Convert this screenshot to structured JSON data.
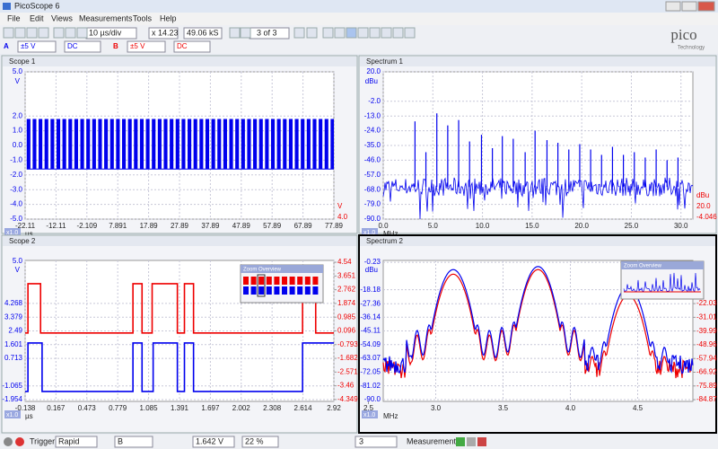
{
  "window": {
    "title": "PicoScope 6"
  },
  "menu": [
    "File",
    "Edit",
    "Views",
    "Measurements",
    "Tools",
    "Help"
  ],
  "toolbar": {
    "timebase": "10 µs/div",
    "zoom": "x 14.23",
    "samples": "49.06 kS",
    "buffer": "3 of 3"
  },
  "channels": [
    {
      "name": "A",
      "range": "±5 V",
      "coupling": "DC",
      "color": "#0000ee"
    },
    {
      "name": "B",
      "range": "±5 V",
      "coupling": "DC",
      "color": "#ee0000"
    }
  ],
  "logo": {
    "brand": "pico",
    "tagline": "Technology"
  },
  "panels": [
    {
      "title": "Scope 1",
      "type": "scope",
      "y_unit": "V",
      "x_unit": "µs",
      "scale_tag": "x1.0",
      "xlim": [
        -22.11,
        77.89
      ],
      "ylim": [
        -5,
        5
      ],
      "yticks": [
        {
          "value": 5,
          "label": "5.0"
        },
        {
          "value": 2,
          "label": "2.0"
        },
        {
          "value": 1,
          "label": "1.0"
        },
        {
          "value": 0,
          "label": "0.0"
        },
        {
          "value": -1,
          "label": "-1.0"
        },
        {
          "value": -2,
          "label": "-2.0"
        },
        {
          "value": -3,
          "label": "-3.0"
        },
        {
          "value": -4,
          "label": "-4.0"
        },
        {
          "value": -5,
          "label": "-5.0"
        }
      ],
      "xticks": [
        -22.11,
        -12.11,
        -2.109,
        7.891,
        17.89,
        27.89,
        37.89,
        47.89,
        57.89,
        67.89,
        77.89
      ],
      "right_labels": [
        "V",
        "4.0"
      ],
      "traces": [
        {
          "color": "#0000ee",
          "levels": [
            1.8,
            -1.6
          ],
          "pulse_start": -21.6,
          "pulse_period": 1.93
        }
      ]
    },
    {
      "title": "Spectrum 1",
      "type": "spectrum",
      "y_unit": "dBu",
      "x_unit": "MHz",
      "scale_tag": "x1.0",
      "xlim": [
        0,
        31.2
      ],
      "ylim": [
        -90,
        20
      ],
      "yticks": [
        {
          "value": 20,
          "label": "20.0"
        },
        {
          "value": -2,
          "label": "-2.0"
        },
        {
          "value": -13,
          "label": "-13.0"
        },
        {
          "value": -24,
          "label": "-24.0"
        },
        {
          "value": -35,
          "label": "-35.0"
        },
        {
          "value": -46,
          "label": "-46.0"
        },
        {
          "value": -57,
          "label": "-57.0"
        },
        {
          "value": -68,
          "label": "-68.0"
        },
        {
          "value": -79,
          "label": "-79.0"
        },
        {
          "value": -90,
          "label": "-90.0"
        }
      ],
      "xticks": [
        {
          "value": 0,
          "label": "0.0"
        },
        {
          "value": 5,
          "label": "5.0"
        },
        {
          "value": 10,
          "label": "10.0"
        },
        {
          "value": 15,
          "label": "15.0"
        },
        {
          "value": 20,
          "label": "20.0"
        },
        {
          "value": 25,
          "label": "25.0"
        },
        {
          "value": 30,
          "label": "30.0"
        }
      ],
      "right_labels": [
        "dBu",
        "20.0",
        "-4.046"
      ],
      "traces": [
        {
          "color": "#0000ee",
          "floor": -66,
          "peaks": [
            [
              3.2,
              -17
            ],
            [
              4.3,
              -40
            ],
            [
              5.4,
              -11
            ],
            [
              6.5,
              -20
            ],
            [
              7.6,
              -16
            ],
            [
              8.7,
              -32
            ],
            [
              9.9,
              -27
            ],
            [
              11.0,
              -37
            ],
            [
              12.0,
              -28
            ],
            [
              13.1,
              -30
            ],
            [
              14.3,
              -40
            ],
            [
              15.3,
              -24
            ],
            [
              16.5,
              -31
            ],
            [
              17.6,
              -33
            ],
            [
              18.7,
              -38
            ],
            [
              19.8,
              -34
            ],
            [
              20.9,
              -38
            ],
            [
              22.0,
              -42
            ],
            [
              23.1,
              -36
            ],
            [
              24.2,
              -42
            ],
            [
              25.3,
              -40
            ],
            [
              26.4,
              -44
            ],
            [
              27.5,
              -38
            ],
            [
              28.6,
              -46
            ],
            [
              29.7,
              -44
            ]
          ]
        }
      ]
    },
    {
      "title": "Scope 2",
      "type": "scope",
      "y_unit": "V",
      "x_unit": "µs",
      "scale_tag": "x1.0",
      "top_label": "5.0",
      "zoom_overview": "Zoom Overview",
      "xlim": [
        -0.138,
        2.92
      ],
      "ylim": [
        -2.07,
        7.05
      ],
      "y2lim": [
        -4.47,
        4.66
      ],
      "yticks": [
        4.268,
        3.379,
        2.49,
        1.601,
        0.713,
        -1.065,
        -1.954
      ],
      "y2ticks": [
        4.54,
        3.651,
        2.762,
        1.874,
        0.985,
        0.096,
        -0.793,
        -1.682,
        -2.571,
        -3.46,
        -4.349
      ],
      "xticks": [
        -0.138,
        0.167,
        0.473,
        0.779,
        1.085,
        1.391,
        1.697,
        2.002,
        2.308,
        2.614,
        2.92
      ],
      "traces": [
        {
          "color": "#ee0000",
          "axis": "y2",
          "levels": [
            3.15,
            -0.04
          ],
          "high_intervals": [
            [
              -0.11,
              0.015
            ],
            [
              0.93,
              1.02
            ],
            [
              1.12,
              1.37
            ],
            [
              1.44,
              1.53
            ],
            [
              2.61,
              2.74
            ]
          ]
        },
        {
          "color": "#0000ee",
          "levels": [
            1.71,
            -1.43
          ],
          "high_intervals": [
            [
              -0.11,
              0.03
            ],
            [
              0.93,
              1.02
            ],
            [
              1.13,
              1.37
            ],
            [
              1.44,
              1.53
            ],
            [
              2.61,
              2.92
            ]
          ]
        }
      ]
    },
    {
      "title": "Spectrum 2",
      "type": "spectrum2",
      "y_unit": "dBu",
      "x_unit": "MHz",
      "scale_tag": "x1.0",
      "zoom_overview": "Zoom Overview",
      "xlim": [
        2.61,
        4.91
      ],
      "ylim": [
        -91.2,
        1.0
      ],
      "y2lim": [
        -86.0,
        6.2
      ],
      "yticks": [
        -0.23,
        -18.18,
        -27.36,
        -36.14,
        -45.11,
        -54.09,
        -63.07,
        -72.05,
        -81.02,
        {
          "value": -90,
          "label": "-90.0"
        }
      ],
      "y2ticks": [
        -22.03,
        -31.01,
        -39.99,
        -48.96,
        -57.94,
        -66.92,
        -75.89,
        -84.87
      ],
      "xticks": [
        2.5,
        {
          "value": 3,
          "label": "3.0"
        },
        3.5,
        {
          "value": 4,
          "label": "4.0"
        },
        4.5
      ],
      "traces": [
        {
          "color": "#ee0000",
          "floor": -70,
          "peaks": [
            [
              3.13,
              -8
            ],
            [
              3.76,
              -5
            ],
            [
              4.43,
              -22
            ]
          ]
        },
        {
          "color": "#0000ee",
          "floor": -67,
          "peaks": [
            [
              3.13,
              -5
            ],
            [
              3.76,
              -3
            ],
            [
              4.43,
              -16
            ]
          ]
        }
      ]
    }
  ],
  "status": {
    "trigger": "Trigger",
    "mode": "Rapid",
    "source": "B",
    "level": "1.642 V",
    "pretrigger": "22 %",
    "count": "3",
    "measurements": "Measurements"
  }
}
